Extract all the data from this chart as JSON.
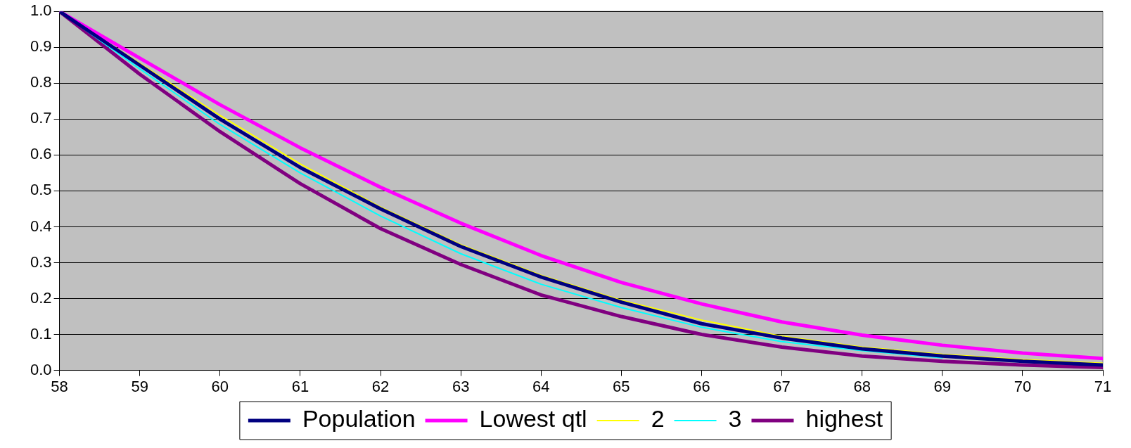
{
  "chart_data": {
    "type": "line",
    "x": [
      58,
      59,
      60,
      61,
      62,
      63,
      64,
      65,
      66,
      67,
      68,
      69,
      70,
      71
    ],
    "series": [
      {
        "name": "Population",
        "color": "#000080",
        "values": [
          1.0,
          0.85,
          0.7,
          0.565,
          0.45,
          0.345,
          0.26,
          0.19,
          0.13,
          0.09,
          0.06,
          0.04,
          0.025,
          0.015
        ]
      },
      {
        "name": "Lowest qtl",
        "color": "#ff00ff",
        "values": [
          1.0,
          0.87,
          0.74,
          0.62,
          0.51,
          0.41,
          0.32,
          0.245,
          0.185,
          0.135,
          0.098,
          0.07,
          0.048,
          0.033
        ]
      },
      {
        "name": "2",
        "color": "#ffff00",
        "values": [
          1.0,
          0.855,
          0.71,
          0.575,
          0.455,
          0.35,
          0.265,
          0.195,
          0.14,
          0.095,
          0.065,
          0.045,
          0.03,
          0.02
        ]
      },
      {
        "name": "3",
        "color": "#00ffff",
        "values": [
          1.0,
          0.84,
          0.685,
          0.55,
          0.43,
          0.325,
          0.24,
          0.175,
          0.12,
          0.08,
          0.055,
          0.035,
          null,
          null
        ]
      },
      {
        "name": "highest",
        "color": "#800080",
        "values": [
          1.0,
          0.825,
          0.665,
          0.52,
          0.395,
          0.295,
          0.21,
          0.15,
          0.1,
          0.065,
          0.04,
          0.025,
          0.015,
          0.008
        ]
      }
    ],
    "xlim": [
      58,
      71
    ],
    "xticks": [
      58,
      59,
      60,
      61,
      62,
      63,
      64,
      65,
      66,
      67,
      68,
      69,
      70,
      71
    ],
    "ylim": [
      0,
      1
    ],
    "yticks": [
      {
        "value": 0,
        "label": "0.0"
      },
      {
        "value": 0.1,
        "label": "0.1"
      },
      {
        "value": 0.2,
        "label": "0.2"
      },
      {
        "value": 0.3,
        "label": "0.3"
      },
      {
        "value": 0.4,
        "label": "0.4"
      },
      {
        "value": 0.5,
        "label": "0.5"
      },
      {
        "value": 0.6,
        "label": "0.6"
      },
      {
        "value": 0.7,
        "label": "0.7"
      },
      {
        "value": 0.8,
        "label": "0.8"
      },
      {
        "value": 0.9,
        "label": "0.9"
      },
      {
        "value": 1,
        "label": "1.0"
      }
    ],
    "grid": "y",
    "legend": "bottom",
    "marker": "none",
    "line_style": "solid"
  }
}
